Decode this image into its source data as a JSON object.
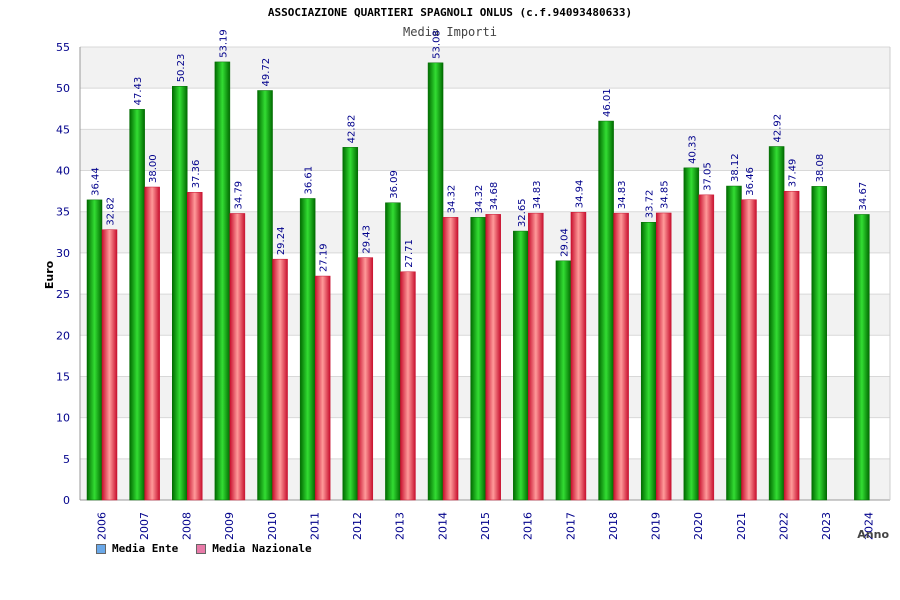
{
  "header": {
    "title": "ASSOCIAZIONE QUARTIERI SPAGNOLI ONLUS (c.f.94093480633)",
    "subtitle": "Media Importi"
  },
  "legend": [
    {
      "label": "Media Ente",
      "color": "#6aa8e8"
    },
    {
      "label": "Media Nazionale",
      "color": "#e87aa8"
    }
  ],
  "colors": {
    "green_dark": "#006b00",
    "green_light": "#33dd33",
    "red_dark": "#c8102e",
    "red_light": "#ff9a9a",
    "label_text": "#00008b",
    "band": "#f2f2f2",
    "grid": "#d8d8d8"
  },
  "chart_data": {
    "type": "bar",
    "title": "Media Importi",
    "xlabel": "Anno",
    "ylabel": "Euro",
    "ylim": [
      0,
      55
    ],
    "yticks": [
      0,
      5,
      10,
      15,
      20,
      25,
      30,
      35,
      40,
      45,
      50,
      55
    ],
    "grid": true,
    "legend_position": "bottom-left",
    "categories": [
      "2006",
      "2007",
      "2008",
      "2009",
      "2010",
      "2011",
      "2012",
      "2013",
      "2014",
      "2015",
      "2016",
      "2017",
      "2018",
      "2019",
      "2020",
      "2021",
      "2022",
      "2023",
      "2024"
    ],
    "series": [
      {
        "name": "Media Ente",
        "values": [
          36.44,
          47.43,
          50.23,
          53.19,
          49.72,
          36.61,
          42.82,
          36.09,
          53.08,
          34.32,
          32.65,
          29.04,
          46.01,
          33.72,
          40.33,
          38.12,
          42.92,
          38.08,
          34.67
        ]
      },
      {
        "name": "Media Nazionale",
        "values": [
          32.82,
          38.0,
          37.36,
          34.79,
          29.24,
          27.19,
          29.43,
          27.71,
          34.32,
          34.68,
          34.83,
          34.94,
          34.83,
          34.85,
          37.05,
          36.46,
          37.49,
          null,
          null
        ]
      }
    ],
    "value_labels": [
      [
        "36.44",
        "47.43",
        "50.23",
        "53.19",
        "49.72",
        "36.61",
        "42.82",
        "36.09",
        "53.08",
        "34.32",
        "32.65",
        "29.04",
        "46.01",
        "33.72",
        "40.33",
        "38.12",
        "42.92",
        "38.08",
        "34.67"
      ],
      [
        "32.82",
        "38.00",
        "37.36",
        "34.79",
        "29.24",
        "27.19",
        "29.43",
        "27.71",
        "34.32",
        "34.68",
        "34.83",
        "34.94",
        "34.83",
        "34.85",
        "37.05",
        "36.46",
        "37.49",
        null,
        null
      ]
    ]
  }
}
